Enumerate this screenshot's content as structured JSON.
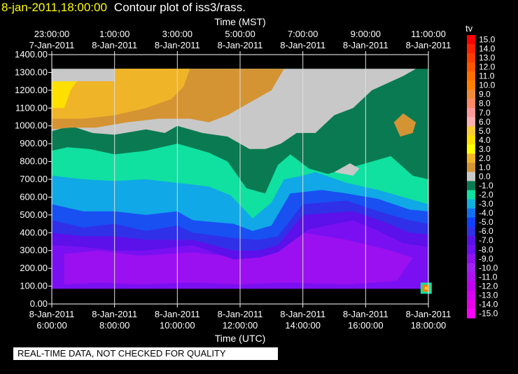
{
  "title": {
    "date": "8-jan-2011,18:00:00",
    "text": "Contour plot of iss3/rass."
  },
  "footer": "REAL-TIME DATA, NOT CHECKED FOR QUALITY",
  "chart_data": {
    "type": "heatmap",
    "title": "Contour plot of iss3/rass.",
    "top_axis_label": "Time (MST)",
    "xlabel": "Time (UTC)",
    "ylabel": "",
    "x_range_hours": [
      6.0,
      18.0
    ],
    "ylim": [
      0,
      1400
    ],
    "y_ticks": [
      "0.00",
      "100.00",
      "200.00",
      "300.00",
      "400.00",
      "500.00",
      "600.00",
      "700.00",
      "800.00",
      "900.00",
      "1000.00",
      "1100.00",
      "1200.00",
      "1300.00",
      "1400.00"
    ],
    "bottom_ticks": [
      {
        "date": "8-Jan-2011",
        "time": "6:00:00"
      },
      {
        "date": "8-Jan-2011",
        "time": "8:00:00"
      },
      {
        "date": "8-Jan-2011",
        "time": "10:00:00"
      },
      {
        "date": "8-Jan-2011",
        "time": "12:00:00"
      },
      {
        "date": "8-Jan-2011",
        "time": "14:00:00"
      },
      {
        "date": "8-Jan-2011",
        "time": "16:00:00"
      },
      {
        "date": "8-Jan-2011",
        "time": "18:00:00"
      }
    ],
    "top_ticks": [
      {
        "time": "23:00:00",
        "date": "7-Jan-2011"
      },
      {
        "time": "1:00:00",
        "date": "8-Jan-2011"
      },
      {
        "time": "3:00:00",
        "date": "8-Jan-2011"
      },
      {
        "time": "5:00:00",
        "date": "8-Jan-2011"
      },
      {
        "time": "7:00:00",
        "date": "8-Jan-2011"
      },
      {
        "time": "9:00:00",
        "date": "8-Jan-2011"
      },
      {
        "time": "11:00:00",
        "date": "8-Jan-2011"
      }
    ],
    "grid": true,
    "colorbar": {
      "label": "tv",
      "levels": [
        "15.0",
        "14.0",
        "13.0",
        "12.0",
        "11.0",
        "10.0",
        "9.0",
        "8.0",
        "7.0",
        "6.0",
        "5.0",
        "4.0",
        "3.0",
        "2.0",
        "1.0",
        "0.0",
        "-1.0",
        "-2.0",
        "-3.0",
        "-4.0",
        "-5.0",
        "-6.0",
        "-7.0",
        "-8.0",
        "-9.0",
        "-10.0",
        "-11.0",
        "-12.0",
        "-13.0",
        "-14.0",
        "-15.0"
      ],
      "colors": [
        "#ff0000",
        "#ff2200",
        "#ff3c00",
        "#ff5500",
        "#ff6e00",
        "#ff8000",
        "#f08a3a",
        "#ff8866",
        "#ff9999",
        "#ffb0b0",
        "#ffcc33",
        "#ffe000",
        "#ffff00",
        "#f0b428",
        "#d49434",
        "#c8c8c8",
        "#0a7a52",
        "#10e0a0",
        "#10b0e0",
        "#1070f0",
        "#1040ff",
        "#3030e8",
        "#5a10e6",
        "#7010f0",
        "#9010f0",
        "#a020f0",
        "#b010f0",
        "#c000f0",
        "#d800f0",
        "#e800e8",
        "#ff00ff"
      ]
    },
    "contour_regions": [
      {
        "level": "-8.0",
        "color": "#7a10f2",
        "polygon": [
          [
            6.0,
            85
          ],
          [
            18.0,
            85
          ],
          [
            18.0,
            600
          ],
          [
            6.0,
            600
          ]
        ]
      },
      {
        "level": "-9.0",
        "color": "#9b10f0",
        "polygon": [
          [
            6.4,
            110
          ],
          [
            7.5,
            120
          ],
          [
            8.8,
            110
          ],
          [
            10.5,
            120
          ],
          [
            12.0,
            110
          ],
          [
            13.5,
            120
          ],
          [
            15.5,
            110
          ],
          [
            17.0,
            130
          ],
          [
            17.5,
            260
          ],
          [
            16.8,
            300
          ],
          [
            15.4,
            360
          ],
          [
            14.0,
            400
          ],
          [
            13.0,
            330
          ],
          [
            12.0,
            260
          ],
          [
            10.5,
            290
          ],
          [
            8.8,
            270
          ],
          [
            7.5,
            300
          ],
          [
            6.4,
            280
          ]
        ]
      },
      {
        "level": "-7.0",
        "color": "#5c10ea",
        "polygon": [
          [
            6.0,
            330
          ],
          [
            7.0,
            320
          ],
          [
            8.0,
            300
          ],
          [
            9.0,
            300
          ],
          [
            10.5,
            330
          ],
          [
            11.8,
            250
          ],
          [
            12.6,
            260
          ],
          [
            13.2,
            290
          ],
          [
            14.2,
            420
          ],
          [
            15.6,
            470
          ],
          [
            16.4,
            410
          ],
          [
            17.2,
            340
          ],
          [
            18.0,
            320
          ],
          [
            18.0,
            900
          ],
          [
            6.0,
            900
          ]
        ]
      },
      {
        "level": "-6.0",
        "color": "#3030e8",
        "polygon": [
          [
            6.0,
            400
          ],
          [
            7.0,
            380
          ],
          [
            8.0,
            380
          ],
          [
            9.0,
            360
          ],
          [
            10.5,
            360
          ],
          [
            11.8,
            300
          ],
          [
            12.6,
            300
          ],
          [
            13.2,
            330
          ],
          [
            14.0,
            500
          ],
          [
            15.6,
            520
          ],
          [
            16.6,
            460
          ],
          [
            17.4,
            400
          ],
          [
            18.0,
            390
          ],
          [
            18.0,
            900
          ],
          [
            6.0,
            900
          ]
        ]
      },
      {
        "level": "-5.0",
        "color": "#1850f2",
        "polygon": [
          [
            6.0,
            470
          ],
          [
            7.0,
            430
          ],
          [
            8.0,
            450
          ],
          [
            9.0,
            410
          ],
          [
            10.0,
            440
          ],
          [
            10.5,
            400
          ],
          [
            11.8,
            370
          ],
          [
            12.6,
            360
          ],
          [
            13.2,
            380
          ],
          [
            14.0,
            560
          ],
          [
            15.4,
            580
          ],
          [
            16.4,
            520
          ],
          [
            17.4,
            470
          ],
          [
            18.0,
            450
          ],
          [
            18.0,
            900
          ],
          [
            6.0,
            900
          ]
        ]
      },
      {
        "level": "-4.0",
        "color": "#10a8e6",
        "polygon": [
          [
            6.0,
            560
          ],
          [
            7.0,
            520
          ],
          [
            8.0,
            520
          ],
          [
            9.0,
            500
          ],
          [
            10.0,
            520
          ],
          [
            10.5,
            470
          ],
          [
            11.8,
            450
          ],
          [
            12.4,
            410
          ],
          [
            13.0,
            440
          ],
          [
            13.6,
            620
          ],
          [
            14.6,
            640
          ],
          [
            15.4,
            620
          ],
          [
            16.4,
            590
          ],
          [
            17.4,
            530
          ],
          [
            18.0,
            520
          ],
          [
            18.0,
            900
          ],
          [
            6.0,
            900
          ]
        ]
      },
      {
        "level": "-3.0",
        "color": "#10e0a0",
        "polygon": [
          [
            6.0,
            720
          ],
          [
            7.0,
            700
          ],
          [
            8.0,
            690
          ],
          [
            9.0,
            700
          ],
          [
            10.0,
            680
          ],
          [
            11.0,
            660
          ],
          [
            11.7,
            610
          ],
          [
            12.4,
            480
          ],
          [
            13.0,
            570
          ],
          [
            13.4,
            700
          ],
          [
            14.0,
            720
          ],
          [
            14.4,
            740
          ],
          [
            15.4,
            680
          ],
          [
            16.4,
            640
          ],
          [
            17.4,
            590
          ],
          [
            18.0,
            560
          ],
          [
            18.0,
            900
          ],
          [
            6.0,
            900
          ]
        ]
      },
      {
        "level": "-1.0",
        "color": "#0a7a52",
        "polygon": [
          [
            6.0,
            860
          ],
          [
            6.5,
            880
          ],
          [
            7.2,
            870
          ],
          [
            8.0,
            840
          ],
          [
            9.0,
            860
          ],
          [
            10.0,
            900
          ],
          [
            11.0,
            850
          ],
          [
            11.6,
            800
          ],
          [
            12.2,
            650
          ],
          [
            12.8,
            620
          ],
          [
            13.2,
            780
          ],
          [
            13.6,
            840
          ],
          [
            14.2,
            760
          ],
          [
            14.8,
            730
          ],
          [
            15.8,
            780
          ],
          [
            16.8,
            830
          ],
          [
            17.5,
            720
          ],
          [
            18.0,
            700
          ],
          [
            18.0,
            1320
          ],
          [
            6.0,
            1320
          ]
        ]
      },
      {
        "level": "0.0",
        "color": "#c8c8c8",
        "polygon": [
          [
            6.0,
            970
          ],
          [
            6.6,
            1000
          ],
          [
            7.3,
            960
          ],
          [
            8.0,
            950
          ],
          [
            9.0,
            980
          ],
          [
            9.6,
            960
          ],
          [
            10.0,
            1000
          ],
          [
            10.8,
            960
          ],
          [
            11.6,
            940
          ],
          [
            12.3,
            870
          ],
          [
            12.8,
            870
          ],
          [
            13.3,
            900
          ],
          [
            13.8,
            960
          ],
          [
            14.4,
            960
          ],
          [
            15.0,
            1060
          ],
          [
            15.6,
            1100
          ],
          [
            16.2,
            1200
          ],
          [
            17.2,
            1280
          ],
          [
            17.6,
            1320
          ],
          [
            6.0,
            1320
          ]
        ]
      },
      {
        "level": "1.0",
        "color": "#d49434",
        "polygon": [
          [
            6.0,
            1250
          ],
          [
            8.0,
            1250
          ],
          [
            8.0,
            1320
          ],
          [
            13.4,
            1320
          ],
          [
            13.0,
            1200
          ],
          [
            12.6,
            1160
          ],
          [
            12.0,
            1100
          ],
          [
            11.6,
            1060
          ],
          [
            11.0,
            1020
          ],
          [
            10.4,
            1040
          ],
          [
            9.4,
            1040
          ],
          [
            8.4,
            1020
          ],
          [
            7.4,
            990
          ],
          [
            6.6,
            990
          ],
          [
            6.0,
            980
          ]
        ]
      },
      {
        "level": "2.0",
        "color": "#f0b428",
        "polygon": [
          [
            6.0,
            1250
          ],
          [
            8.0,
            1250
          ],
          [
            8.0,
            1320
          ],
          [
            10.4,
            1320
          ],
          [
            10.2,
            1220
          ],
          [
            9.8,
            1150
          ],
          [
            9.0,
            1100
          ],
          [
            8.0,
            1060
          ],
          [
            7.0,
            1040
          ],
          [
            6.0,
            1040
          ]
        ]
      },
      {
        "level": "4.0",
        "color": "#ffe000",
        "polygon": [
          [
            6.0,
            1100
          ],
          [
            6.4,
            1100
          ],
          [
            6.6,
            1200
          ],
          [
            6.8,
            1250
          ],
          [
            6.0,
            1250
          ]
        ]
      },
      {
        "level": "1.0",
        "color": "#d49434",
        "polygon": [
          [
            16.9,
            1020
          ],
          [
            17.2,
            1070
          ],
          [
            17.6,
            1020
          ],
          [
            17.5,
            960
          ],
          [
            17.1,
            940
          ]
        ]
      },
      {
        "level": "0.0",
        "color": "#c8c8c8",
        "polygon": [
          [
            15.0,
            740
          ],
          [
            15.5,
            790
          ],
          [
            15.8,
            760
          ],
          [
            15.6,
            720
          ]
        ]
      }
    ]
  }
}
